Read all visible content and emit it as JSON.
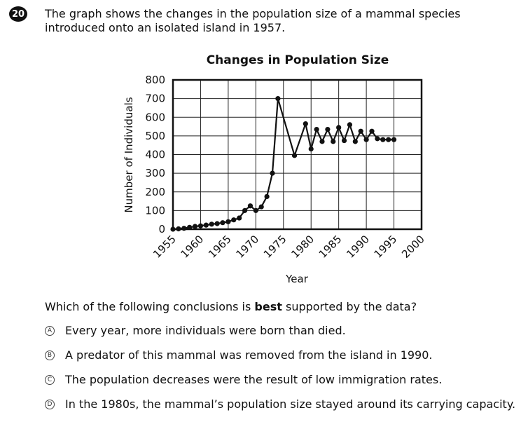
{
  "question": {
    "number": "20",
    "stem": "The graph shows the changes in the population size of a mammal species\nintroduced onto an isolated island in 1957.",
    "prompt_before": "Which of the following conclusions is ",
    "prompt_bold": "best",
    "prompt_after": " supported by the data?",
    "options": [
      {
        "letter": "A",
        "text": "Every year, more individuals were born than died."
      },
      {
        "letter": "B",
        "text": "A predator of this mammal was removed from the island in 1990."
      },
      {
        "letter": "C",
        "text": "The population decreases were the result of low immigration rates."
      },
      {
        "letter": "D",
        "text": "In the 1980s, the mammal’s population size stayed around its carrying capacity."
      }
    ]
  },
  "chart_data": {
    "type": "line",
    "title": "Changes in Population Size",
    "xlabel": "Year",
    "ylabel": "Number of Individuals",
    "xlim": [
      1955,
      2000
    ],
    "ylim": [
      0,
      800
    ],
    "x_ticks": [
      "1955",
      "1960",
      "1965",
      "1970",
      "1975",
      "1980",
      "1985",
      "1990",
      "1995",
      "2000"
    ],
    "y_ticks": [
      "0",
      "100",
      "200",
      "300",
      "400",
      "500",
      "600",
      "700",
      "800"
    ],
    "grid": true,
    "series": [
      {
        "x": [
          1955,
          1956,
          1957,
          1958,
          1959,
          1960,
          1961,
          1962,
          1963,
          1964,
          1965,
          1966,
          1967,
          1968,
          1969,
          1970,
          1971,
          1972,
          1973,
          1974,
          1977,
          1979,
          1980,
          1981,
          1982,
          1983,
          1984,
          1985,
          1986,
          1987,
          1988,
          1989,
          1990,
          1991,
          1992,
          1993,
          1994,
          1995
        ],
        "y": [
          0,
          2,
          5,
          10,
          15,
          18,
          22,
          27,
          30,
          35,
          40,
          50,
          60,
          100,
          125,
          100,
          120,
          175,
          300,
          700,
          395,
          565,
          430,
          535,
          470,
          535,
          470,
          545,
          475,
          560,
          470,
          525,
          480,
          525,
          485,
          480,
          480,
          480
        ]
      }
    ]
  }
}
